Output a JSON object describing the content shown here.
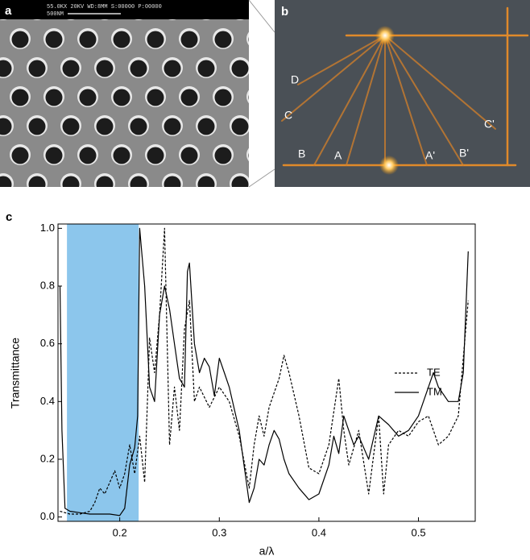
{
  "panel_a": {
    "label": "a",
    "sem_info": "55.0KX  20KV WD:8MM  S:00000 P:00000",
    "scale_text": "500NM"
  },
  "panel_b": {
    "label": "b",
    "points": [
      "D",
      "C",
      "B",
      "A",
      "A'",
      "B'",
      "C'"
    ]
  },
  "chart_data": {
    "type": "line",
    "panel_label": "c",
    "xlabel": "a/λ",
    "ylabel": "Transmittance",
    "xlim": [
      0.138,
      0.557
    ],
    "ylim": [
      -0.015,
      1.015
    ],
    "xticks": [
      0.2,
      0.3,
      0.4,
      0.5
    ],
    "yticks": [
      {
        "value": 0,
        "label": "0.0"
      },
      0.2,
      0.4,
      0.6,
      0.8,
      {
        "value": 1,
        "label": "1.0"
      }
    ],
    "shaded_band": [
      0.147,
      0.219
    ],
    "shaded_color": "#8cc6ec",
    "series": [
      {
        "name": "TE",
        "color": "#000000",
        "dashed": true,
        "x": [
          0.14,
          0.15,
          0.16,
          0.17,
          0.175,
          0.18,
          0.185,
          0.19,
          0.195,
          0.2,
          0.205,
          0.21,
          0.215,
          0.22,
          0.225,
          0.23,
          0.235,
          0.24,
          0.245,
          0.25,
          0.255,
          0.26,
          0.265,
          0.27,
          0.275,
          0.28,
          0.29,
          0.3,
          0.31,
          0.32,
          0.33,
          0.335,
          0.34,
          0.345,
          0.35,
          0.36,
          0.365,
          0.37,
          0.38,
          0.39,
          0.4,
          0.41,
          0.42,
          0.425,
          0.43,
          0.44,
          0.45,
          0.46,
          0.465,
          0.47,
          0.48,
          0.49,
          0.5,
          0.51,
          0.52,
          0.53,
          0.54,
          0.55
        ],
        "values": [
          0.02,
          0.01,
          0.01,
          0.02,
          0.05,
          0.1,
          0.08,
          0.12,
          0.16,
          0.1,
          0.15,
          0.25,
          0.15,
          0.28,
          0.12,
          0.62,
          0.5,
          0.7,
          1.0,
          0.25,
          0.45,
          0.3,
          0.65,
          0.75,
          0.4,
          0.45,
          0.38,
          0.45,
          0.4,
          0.28,
          0.1,
          0.25,
          0.35,
          0.28,
          0.38,
          0.48,
          0.56,
          0.5,
          0.35,
          0.17,
          0.15,
          0.25,
          0.48,
          0.3,
          0.18,
          0.3,
          0.08,
          0.35,
          0.08,
          0.25,
          0.3,
          0.28,
          0.33,
          0.35,
          0.25,
          0.28,
          0.35,
          0.75
        ]
      },
      {
        "name": "TM",
        "color": "#000000",
        "dashed": false,
        "x": [
          0.14,
          0.142,
          0.145,
          0.15,
          0.16,
          0.17,
          0.18,
          0.19,
          0.2,
          0.205,
          0.21,
          0.215,
          0.218,
          0.22,
          0.225,
          0.23,
          0.235,
          0.24,
          0.245,
          0.25,
          0.255,
          0.26,
          0.265,
          0.268,
          0.27,
          0.275,
          0.28,
          0.285,
          0.29,
          0.295,
          0.3,
          0.305,
          0.31,
          0.32,
          0.33,
          0.335,
          0.34,
          0.345,
          0.35,
          0.355,
          0.36,
          0.365,
          0.37,
          0.38,
          0.39,
          0.4,
          0.41,
          0.415,
          0.42,
          0.425,
          0.43,
          0.435,
          0.44,
          0.45,
          0.46,
          0.47,
          0.48,
          0.49,
          0.5,
          0.51,
          0.515,
          0.52,
          0.53,
          0.54,
          0.545,
          0.55
        ],
        "values": [
          0.8,
          0.3,
          0.03,
          0.02,
          0.015,
          0.01,
          0.01,
          0.01,
          0.005,
          0.03,
          0.18,
          0.24,
          0.35,
          1.0,
          0.8,
          0.45,
          0.4,
          0.7,
          0.8,
          0.72,
          0.6,
          0.48,
          0.45,
          0.85,
          0.88,
          0.6,
          0.5,
          0.55,
          0.52,
          0.42,
          0.55,
          0.5,
          0.45,
          0.3,
          0.05,
          0.1,
          0.2,
          0.18,
          0.25,
          0.3,
          0.27,
          0.2,
          0.15,
          0.1,
          0.06,
          0.08,
          0.18,
          0.28,
          0.22,
          0.35,
          0.3,
          0.25,
          0.28,
          0.2,
          0.35,
          0.32,
          0.28,
          0.3,
          0.35,
          0.45,
          0.5,
          0.45,
          0.4,
          0.4,
          0.5,
          0.92
        ]
      }
    ]
  }
}
